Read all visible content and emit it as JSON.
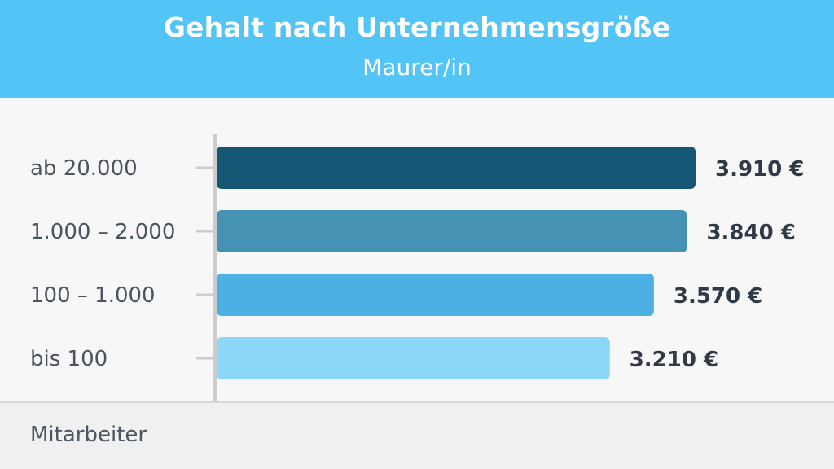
{
  "header": {
    "title": "Gehalt nach Unternehmensgröße",
    "subtitle": "Maurer/in"
  },
  "footer": {
    "axis_label": "Mitarbeiter"
  },
  "colors": {
    "header_bg": "#52c4f5",
    "bars": [
      "#155674",
      "#4592b5",
      "#4db0e2",
      "#8cd6f7"
    ],
    "label_text": "#4a5561",
    "value_text": "#2f3a46",
    "axis": "#cccccc"
  },
  "chart_data": {
    "type": "bar",
    "orientation": "horizontal",
    "title": "Gehalt nach Unternehmensgröße",
    "subtitle": "Maurer/in",
    "ylabel": "Mitarbeiter",
    "categories": [
      "ab 20.000",
      "1.000 – 2.000",
      "100 – 1.000",
      "bis 100"
    ],
    "values": [
      3910,
      3840,
      3570,
      3210
    ],
    "value_labels": [
      "3.910 €",
      "3.840 €",
      "3.570 €",
      "3.210 €"
    ],
    "xlim": [
      0,
      4000
    ],
    "grid": false,
    "legend": "none"
  }
}
